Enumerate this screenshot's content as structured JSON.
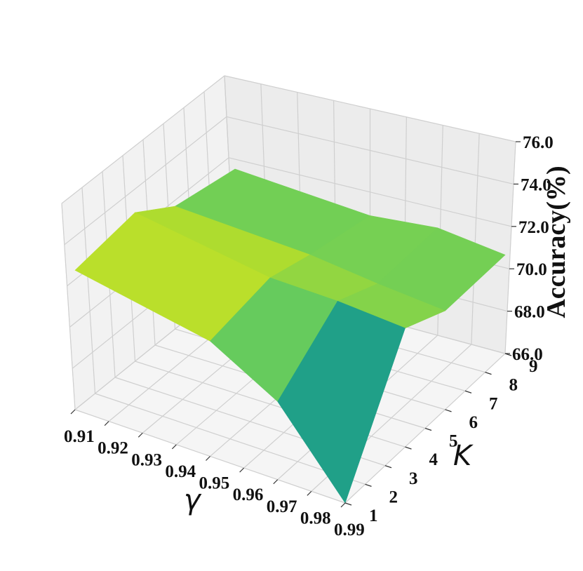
{
  "chart_data": {
    "type": "surface",
    "title": "",
    "colormap": "viridis",
    "xlabel": "γ",
    "ylabel": "K",
    "zlabel": "Accuracy(%)",
    "x_ticks": [
      "0.91",
      "0.92",
      "0.93",
      "0.94",
      "0.95",
      "0.96",
      "0.97",
      "0.98",
      "0.99"
    ],
    "y_ticks": [
      "1",
      "2",
      "3",
      "4",
      "5",
      "6",
      "7",
      "8",
      "9"
    ],
    "z_ticks": [
      "66.0",
      "68.0",
      "70.0",
      "72.0",
      "74.0",
      "76.0"
    ],
    "x": [
      0.91,
      0.95,
      0.97,
      0.99
    ],
    "y": [
      1,
      4,
      6,
      9
    ],
    "z": [
      [
        73.5,
        72.2,
        70.2,
        66.0
      ],
      [
        74.0,
        73.0,
        73.0,
        72.8
      ],
      [
        72.6,
        72.5,
        72.2,
        72.0
      ],
      [
        72.0,
        72.0,
        72.6,
        72.4
      ]
    ],
    "xlim": [
      0.91,
      0.99
    ],
    "ylim": [
      1,
      9
    ],
    "zlim": [
      66.0,
      76.0
    ],
    "grid": true
  }
}
